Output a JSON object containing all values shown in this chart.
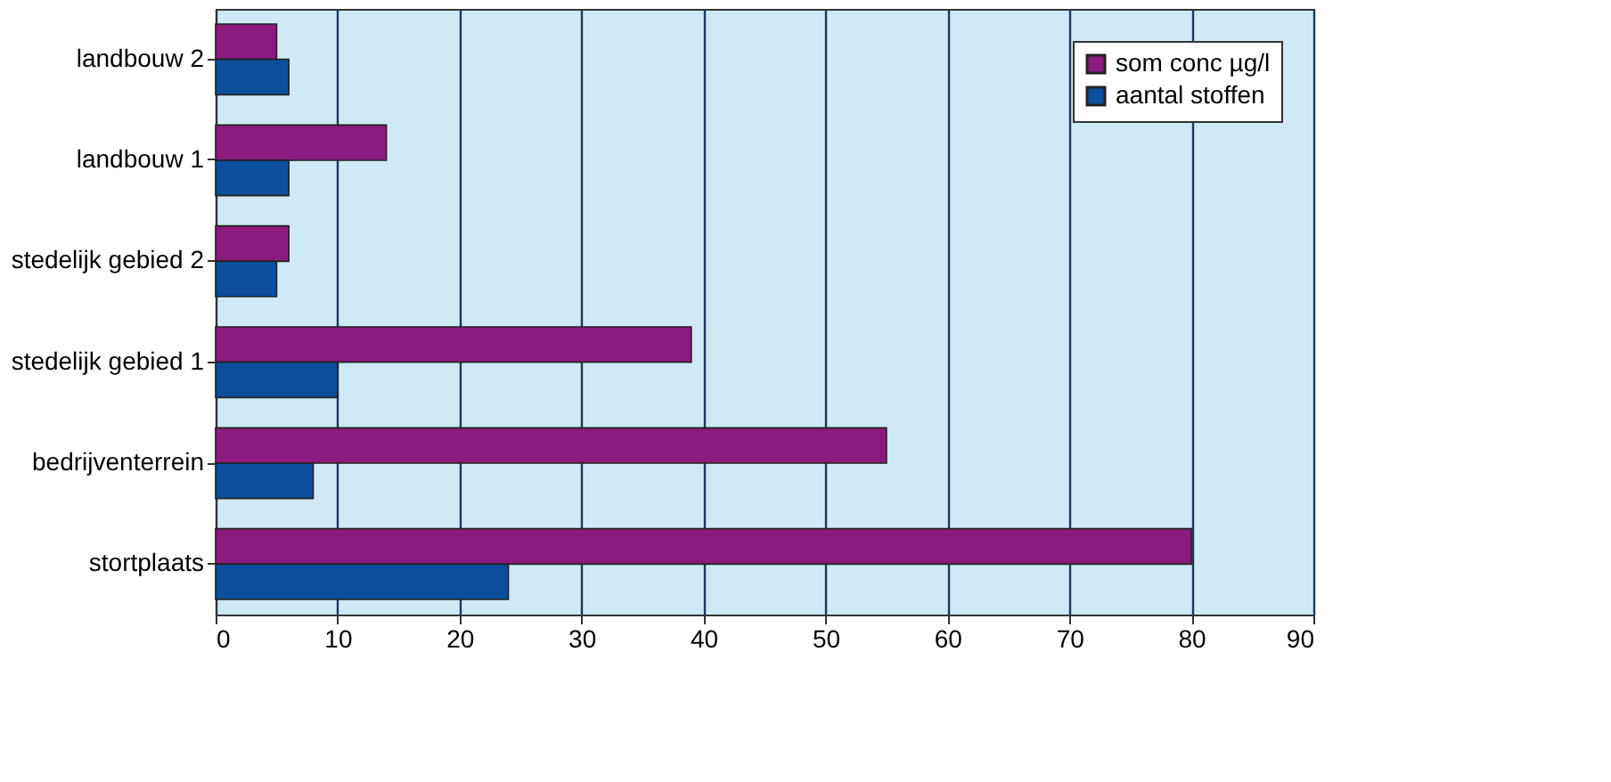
{
  "chart_data": {
    "type": "bar",
    "orientation": "horizontal",
    "categories": [
      "landbouw 2",
      "landbouw 1",
      "stedelijk gebied 2",
      "stedelijk gebied 1",
      "bedrijventerrein",
      "stortplaats"
    ],
    "series": [
      {
        "name": "som conc µg/l",
        "color": "#8b1a7e",
        "values": [
          5,
          14,
          6,
          39,
          55,
          80
        ]
      },
      {
        "name": "aantal stoffen",
        "color": "#0b4f9c",
        "values": [
          6,
          6,
          5,
          10,
          8,
          24
        ]
      }
    ],
    "xlim": [
      0,
      90
    ],
    "xticks": [
      0,
      10,
      20,
      30,
      40,
      50,
      60,
      70,
      80,
      90
    ],
    "grid": "x",
    "legend": "top right"
  }
}
